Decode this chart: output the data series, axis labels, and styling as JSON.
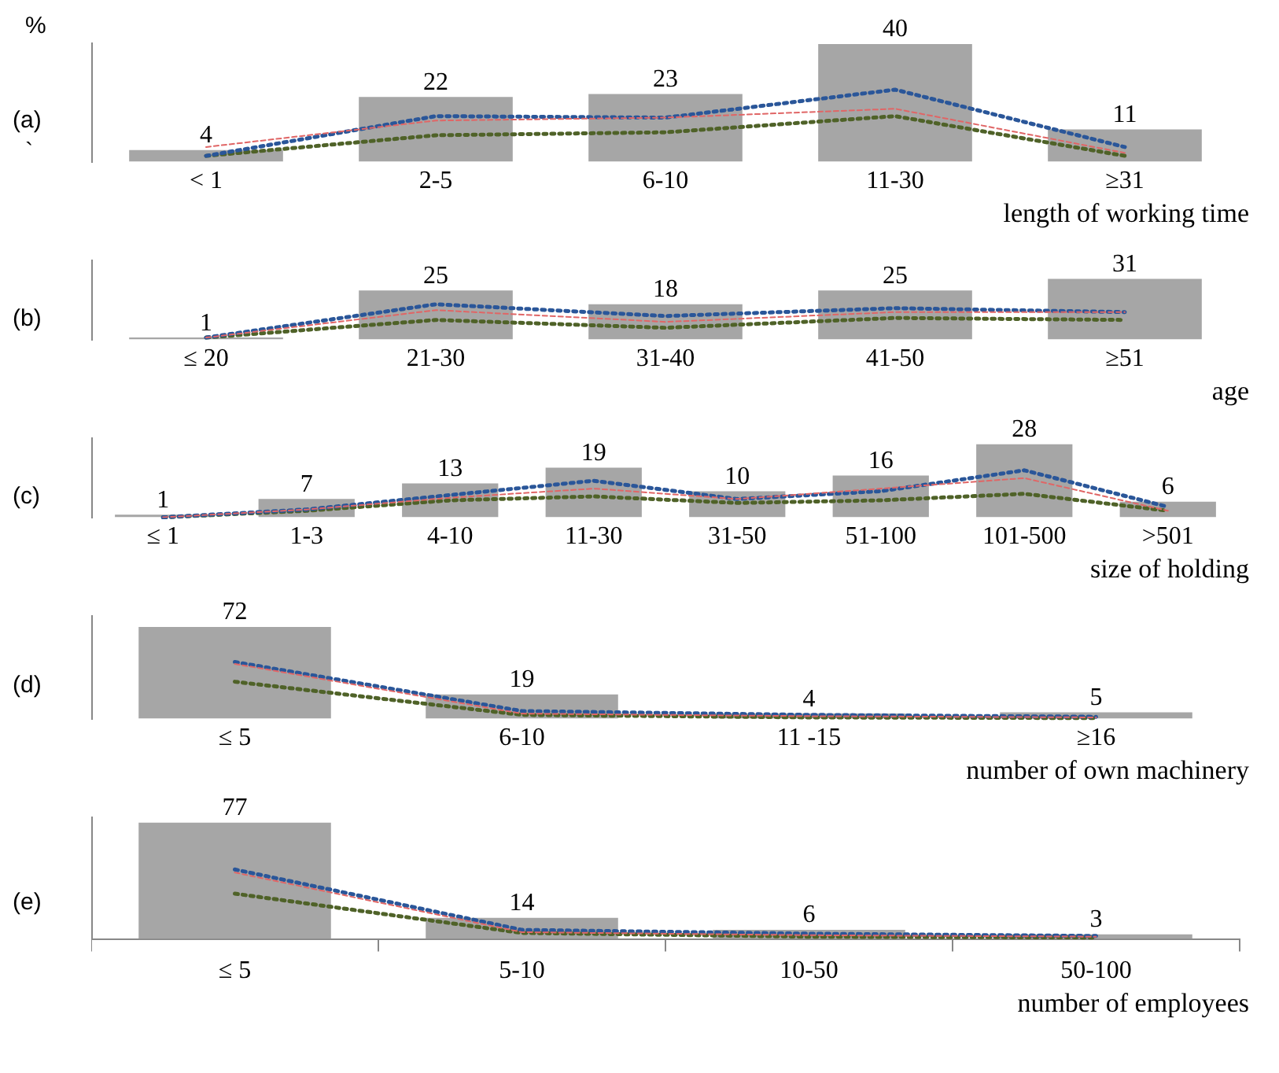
{
  "chart_data": [
    {
      "type": "bar",
      "ylabel": "(a)",
      "xlabel": "length of working time",
      "annotations": [
        "%",
        "`"
      ],
      "categories": [
        "< 1",
        "2-5",
        "6-10",
        "11-30",
        "≥31"
      ],
      "grid": false,
      "marker": "none",
      "series": [
        {
          "color": "#a6a6a6",
          "values": [
            4,
            22,
            23,
            40,
            11
          ],
          "value_labels": [
            "4",
            "22",
            "23",
            "40",
            "11"
          ]
        },
        {
          "type": "line",
          "color": "#2a5699",
          "line_style": "dotted",
          "values": [
            2,
            15.5,
            15,
            24.5,
            5
          ]
        },
        {
          "type": "line",
          "color": "#e06666",
          "line_style": "dashed",
          "values": [
            5,
            14,
            15,
            18,
            3
          ]
        },
        {
          "type": "line",
          "color": "#4f6228",
          "line_style": "dotted",
          "values": [
            2,
            9,
            10,
            15.5,
            2
          ]
        }
      ]
    },
    {
      "type": "bar",
      "ylabel": "(b)",
      "xlabel": "age",
      "categories": [
        "≤ 20",
        "21-30",
        "31-40",
        "41-50",
        "≥51"
      ],
      "grid": false,
      "marker": "none",
      "series": [
        {
          "color": "#a6a6a6",
          "values": [
            1,
            25,
            18,
            25,
            31
          ],
          "value_labels": [
            "1",
            "25",
            "18",
            "25",
            "31"
          ]
        },
        {
          "type": "line",
          "color": "#2a5699",
          "line_style": "dotted",
          "values": [
            1,
            18,
            12,
            16,
            14
          ]
        },
        {
          "type": "line",
          "color": "#e06666",
          "line_style": "dashed",
          "values": [
            1,
            15,
            9,
            14,
            14
          ]
        },
        {
          "type": "line",
          "color": "#4f6228",
          "line_style": "dotted",
          "values": [
            1,
            10,
            6,
            11,
            10
          ]
        }
      ]
    },
    {
      "type": "bar",
      "ylabel": "(c)",
      "xlabel": "size of holding",
      "categories": [
        "≤ 1",
        "1-3",
        "4-10",
        "11-30",
        "31-50",
        "51-100",
        "101-500",
        ">501"
      ],
      "grid": false,
      "marker": "none",
      "series": [
        {
          "color": "#a6a6a6",
          "values": [
            1,
            7,
            13,
            19,
            10,
            16,
            28,
            6
          ],
          "value_labels": [
            "1",
            "7",
            "13",
            "19",
            "10",
            "16",
            "28",
            "6"
          ]
        },
        {
          "type": "line",
          "color": "#2a5699",
          "line_style": "dotted",
          "values": [
            0,
            3,
            8.5,
            14,
            7,
            10,
            18,
            4
          ]
        },
        {
          "type": "line",
          "color": "#e06666",
          "line_style": "dashed",
          "values": [
            0,
            3,
            7.5,
            11,
            7,
            11,
            15,
            2.5
          ]
        },
        {
          "type": "line",
          "color": "#4f6228",
          "line_style": "dotted",
          "values": [
            0,
            2.5,
            6.5,
            8,
            5.5,
            6.5,
            9,
            2.5
          ]
        }
      ]
    },
    {
      "type": "bar",
      "ylabel": "(d)",
      "xlabel": "number of own machinery",
      "categories": [
        "≤ 5",
        "6-10",
        "11 -15",
        "≥16"
      ],
      "grid": false,
      "marker": "none",
      "series": [
        {
          "color": "#a6a6a6",
          "values": [
            72,
            19,
            4,
            5
          ],
          "value_labels": [
            "72",
            "19",
            "4",
            "5"
          ]
        },
        {
          "type": "line",
          "color": "#2a5699",
          "line_style": "dotted",
          "values": [
            44.5,
            6,
            3,
            1.5
          ]
        },
        {
          "type": "line",
          "color": "#e06666",
          "line_style": "dashed",
          "values": [
            43,
            4,
            2,
            1
          ]
        },
        {
          "type": "line",
          "color": "#4f6228",
          "line_style": "dotted",
          "values": [
            29,
            3,
            1,
            0.5
          ]
        }
      ]
    },
    {
      "type": "bar",
      "ylabel": "(e)",
      "xlabel": "number of employees",
      "categories": [
        "≤ 5",
        "5-10",
        "10-50",
        "50-100"
      ],
      "grid": false,
      "marker": "none",
      "series": [
        {
          "color": "#a6a6a6",
          "values": [
            77,
            14,
            6,
            3
          ],
          "value_labels": [
            "77",
            "14",
            "6",
            "3"
          ]
        },
        {
          "type": "line",
          "color": "#2a5699",
          "line_style": "dotted",
          "values": [
            46,
            6,
            3.5,
            2
          ]
        },
        {
          "type": "line",
          "color": "#e06666",
          "line_style": "dashed",
          "values": [
            44,
            4.5,
            2.5,
            1.5
          ]
        },
        {
          "type": "line",
          "color": "#4f6228",
          "line_style": "dotted",
          "values": [
            30,
            4,
            1.5,
            1
          ]
        }
      ]
    }
  ]
}
